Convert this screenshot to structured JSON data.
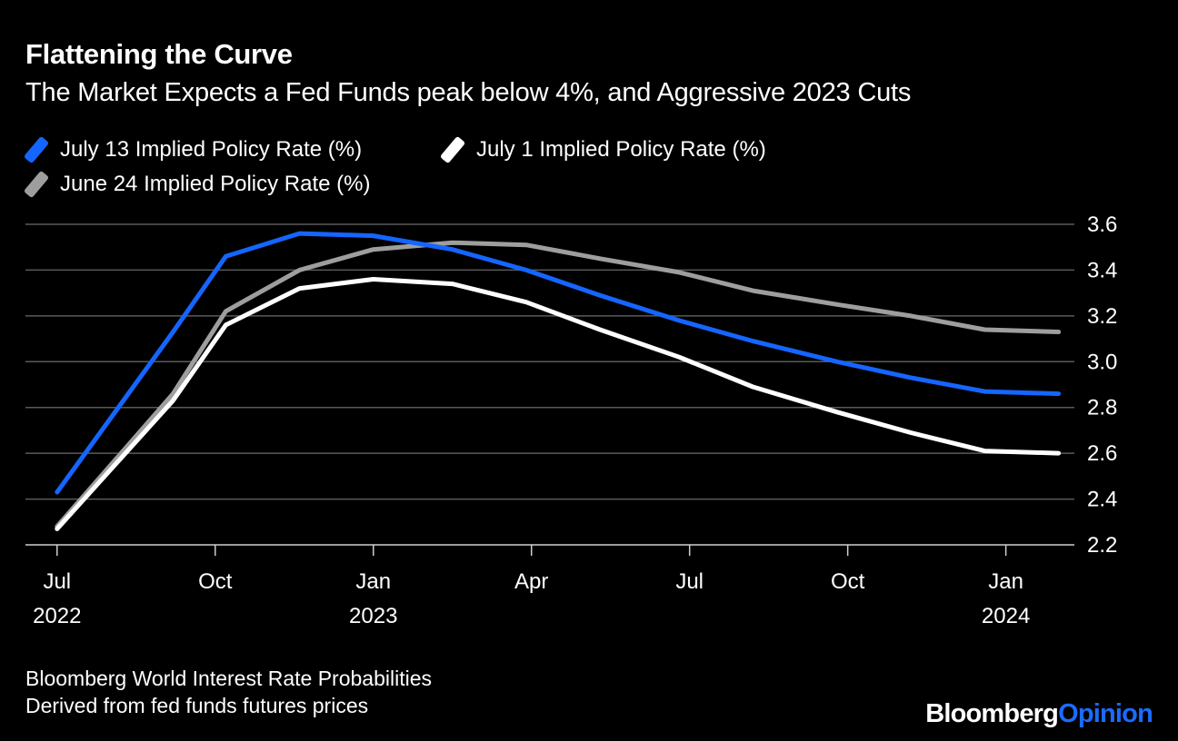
{
  "header": {
    "title": "Flattening the Curve",
    "subtitle": "The Market Expects a Fed Funds peak below 4%, and Aggressive 2023 Cuts"
  },
  "legend": [
    {
      "label": "July 13 Implied Policy Rate (%)",
      "color": "#1565ff"
    },
    {
      "label": "July 1 Implied Policy Rate (%)",
      "color": "#ffffff"
    },
    {
      "label": "June 24 Implied Policy Rate (%)",
      "color": "#9e9e9e"
    }
  ],
  "footer": {
    "source_line1": "Bloomberg World Interest Rate Probabilities",
    "source_line2": "Derived from fed funds futures prices",
    "brand_part1": "Bloomberg",
    "brand_part2": "Opinion",
    "brand_color2": "#1a6cff"
  },
  "chart_data": {
    "type": "line",
    "title": "Flattening the Curve",
    "subtitle": "The Market Expects a Fed Funds peak below 4%, and Aggressive 2023 Cuts",
    "xlabel": "",
    "ylabel": "",
    "ylim": [
      2.2,
      3.6
    ],
    "yticks": [
      "3.6",
      "3.4",
      "3.2",
      "3.0",
      "2.8",
      "2.6",
      "2.4",
      "2.2"
    ],
    "grid": true,
    "xticks": [
      {
        "month": 0,
        "label": "Jul",
        "year": "2022"
      },
      {
        "month": 3,
        "label": "Oct",
        "year": ""
      },
      {
        "month": 6,
        "label": "Jan",
        "year": "2023"
      },
      {
        "month": 9,
        "label": "Apr",
        "year": ""
      },
      {
        "month": 12,
        "label": "Jul",
        "year": ""
      },
      {
        "month": 15,
        "label": "Oct",
        "year": ""
      },
      {
        "month": 18,
        "label": "Jan",
        "year": "2024"
      }
    ],
    "xlim_months": [
      -0.6,
      19.3
    ],
    "x_months": [
      0,
      2.2,
      3.2,
      4.6,
      6.0,
      7.5,
      8.9,
      10.3,
      11.8,
      13.2,
      14.8,
      16.2,
      17.6,
      19.0
    ],
    "series": [
      {
        "name": "July 13 Implied Policy Rate (%)",
        "color": "#1565ff",
        "values": [
          2.43,
          3.13,
          3.46,
          3.56,
          3.55,
          3.49,
          3.4,
          3.29,
          3.18,
          3.09,
          3.0,
          2.93,
          2.87,
          2.86
        ]
      },
      {
        "name": "July 1 Implied Policy Rate (%)",
        "color": "#ffffff",
        "values": [
          2.27,
          2.83,
          3.16,
          3.32,
          3.36,
          3.34,
          3.26,
          3.14,
          3.02,
          2.89,
          2.78,
          2.69,
          2.61,
          2.6
        ]
      },
      {
        "name": "June 24 Implied Policy Rate (%)",
        "color": "#9e9e9e",
        "values": [
          2.28,
          2.86,
          3.22,
          3.4,
          3.49,
          3.52,
          3.51,
          3.45,
          3.39,
          3.31,
          3.25,
          3.2,
          3.14,
          3.13
        ]
      }
    ]
  }
}
